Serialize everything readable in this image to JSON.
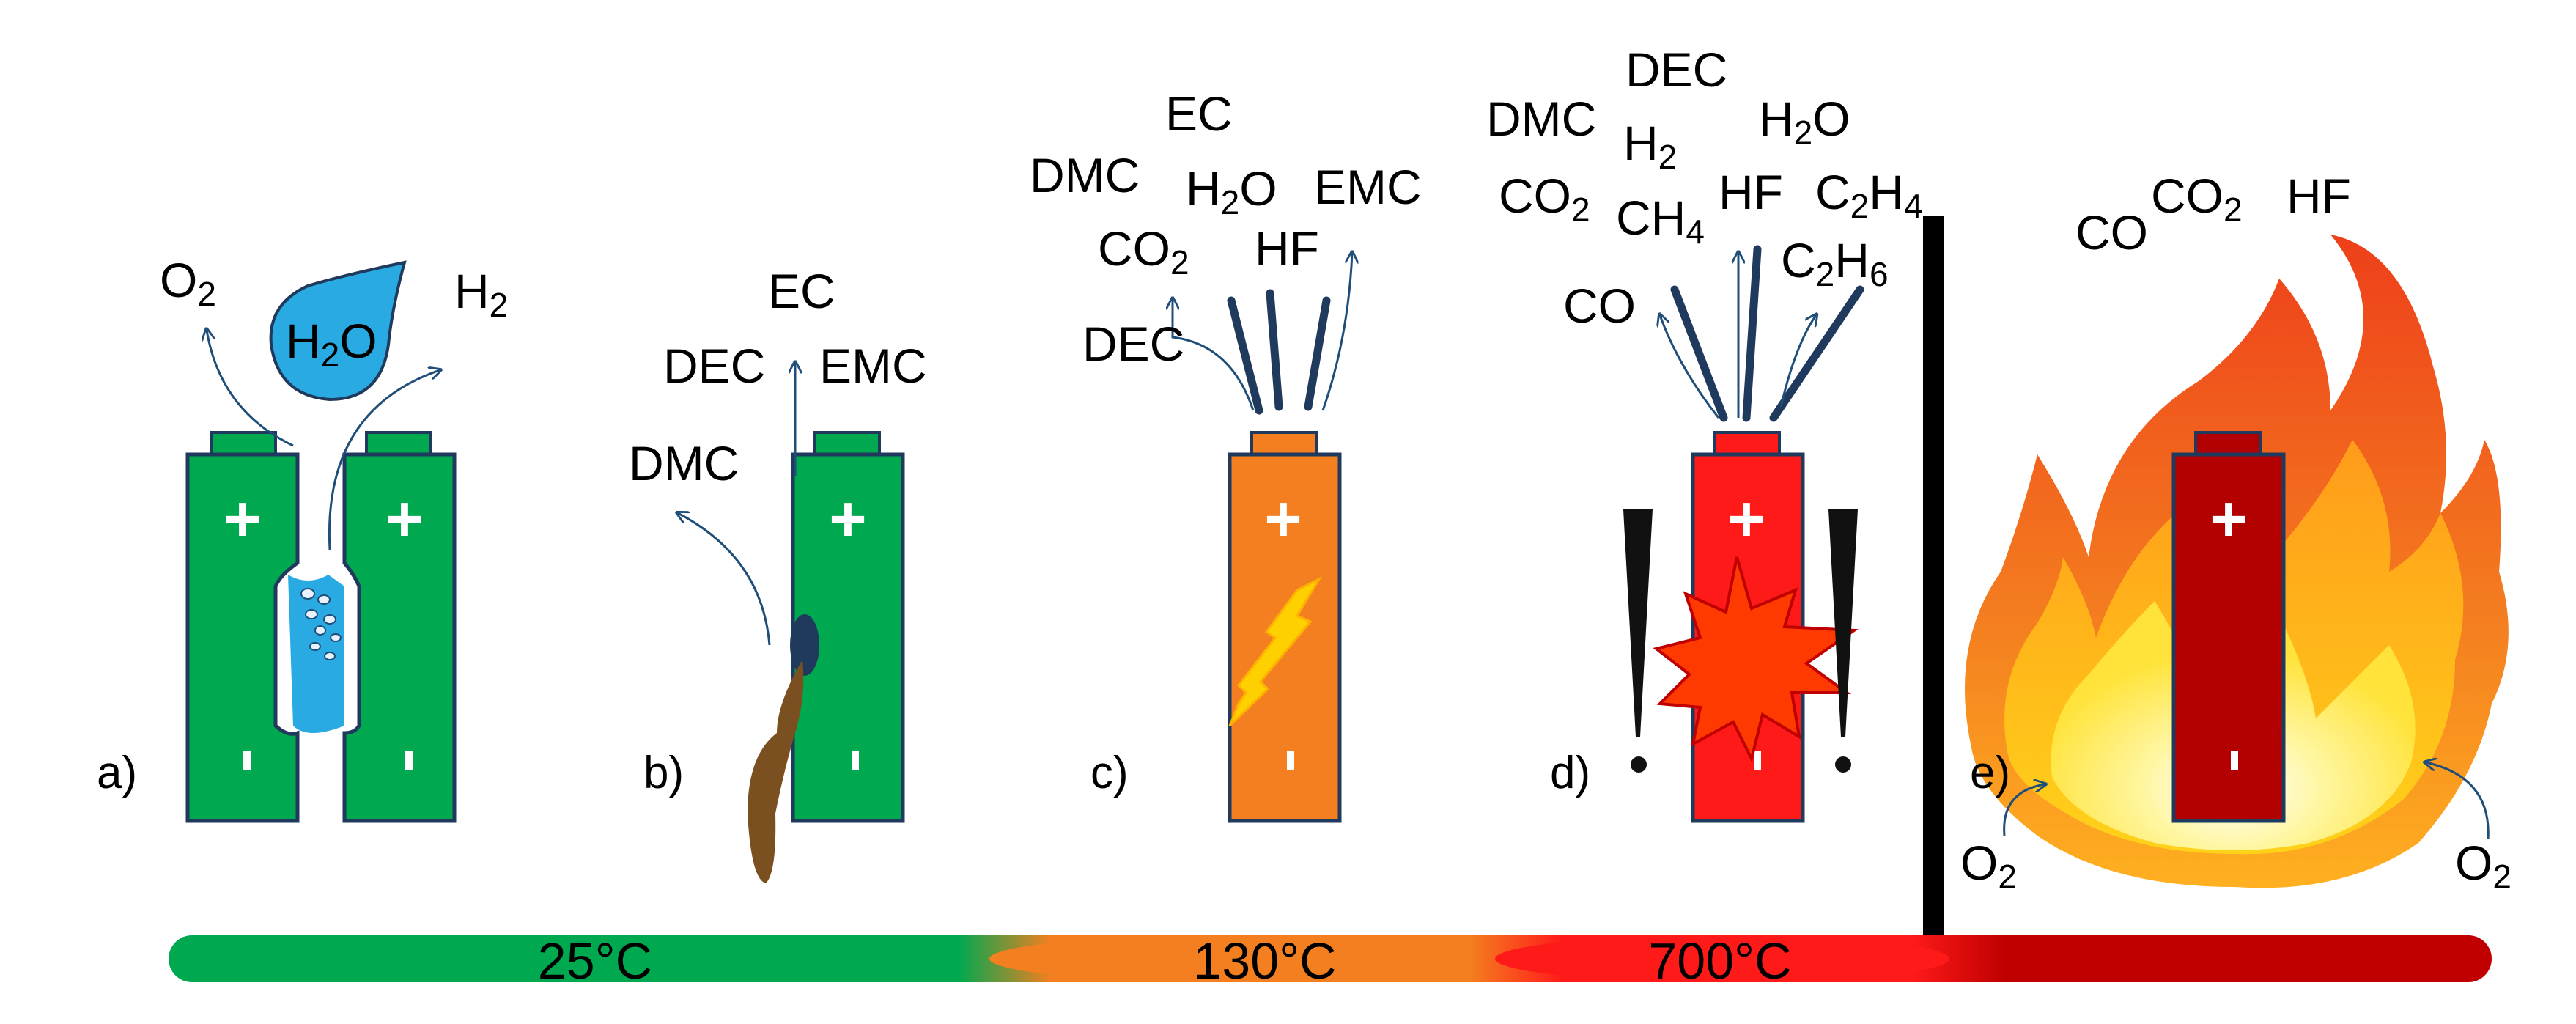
{
  "colors": {
    "green": "#00a84f",
    "orange": "#f47f20",
    "red": "#ff1a1a",
    "darkred": "#b30000",
    "outline": "#1f3a5c",
    "arrow": "#1f4e79",
    "water": "#29aae2",
    "leak": "#7a5020",
    "spark": "#ffd000"
  },
  "temperatures": [
    "25°C",
    "130°C",
    "700°C"
  ],
  "panels": {
    "a": {
      "label": "a)",
      "water": {
        "main": "H",
        "sub": "2",
        "tail": "O"
      },
      "gas_left": {
        "main": "O",
        "sub": "2"
      },
      "gas_right": {
        "main": "H",
        "sub": "2"
      }
    },
    "b": {
      "label": "b)",
      "gases": {
        "ec": "EC",
        "dec": "DEC",
        "emc": "EMC",
        "dmc": "DMC"
      }
    },
    "c": {
      "label": "c)",
      "gases": {
        "ec": "EC",
        "dmc": "DMC",
        "h2o": {
          "main": "H",
          "sub": "2",
          "tail": "O"
        },
        "emc": "EMC",
        "co2": {
          "main": "CO",
          "sub": "2"
        },
        "hf": "HF",
        "dec": "DEC"
      }
    },
    "d": {
      "label": "d)",
      "gases": {
        "dec": "DEC",
        "dmc": "DMC",
        "h2": {
          "main": "H",
          "sub": "2"
        },
        "h2o": {
          "main": "H",
          "sub": "2",
          "tail": "O"
        },
        "co2": {
          "main": "CO",
          "sub": "2"
        },
        "ch4": {
          "main": "CH",
          "sub": "4"
        },
        "hf": "HF",
        "c2h4": {
          "main": "C",
          "sub": "2",
          "tail": "H",
          "sub2": "4"
        },
        "co": "CO",
        "c2h6": {
          "main": "C",
          "sub": "2",
          "tail": "H",
          "sub2": "6"
        }
      }
    },
    "e": {
      "label": "e)",
      "gases": {
        "co": "CO",
        "co2": {
          "main": "CO",
          "sub": "2"
        },
        "hf": "HF"
      },
      "oxygen_left": {
        "main": "O",
        "sub": "2"
      },
      "oxygen_right": {
        "main": "O",
        "sub": "2"
      }
    }
  },
  "battery": {
    "plus": "+",
    "minus": "-"
  }
}
